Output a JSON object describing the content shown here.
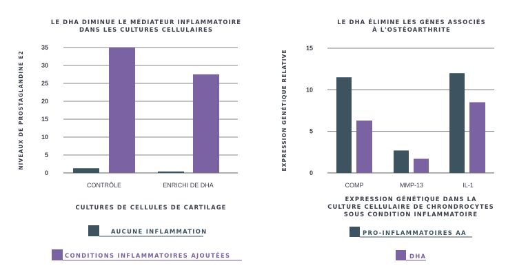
{
  "colors": {
    "series_a": "#3e5360",
    "series_b": "#7b62a3",
    "text": "#3b3f4a",
    "grid": "#5a5e66"
  },
  "chart_data": [
    {
      "type": "bar",
      "title_lines": [
        "LE DHA DIMINUE LE MÉDIATEUR INFLAMMATOIRE",
        "DANS LES CULTURES CELLULAIRES"
      ],
      "ylabel": "NIVEAUX DE PROSTAGLANDINE E2",
      "xlabel": "CULTURES DE CELLULES DE CARTILAGE",
      "categories": [
        "CONTRÔLE",
        "ENRICHI DE DHA"
      ],
      "ylim": [
        0,
        35
      ],
      "yticks": [
        0,
        5,
        10,
        15,
        20,
        25,
        30,
        35
      ],
      "grid": true,
      "series": [
        {
          "name": "AUCUNE INFLAMMATION",
          "values": [
            1.3,
            0.4
          ]
        },
        {
          "name": "CONDITIONS INFLAMMATOIRES AJOUTÉES",
          "values": [
            35,
            27.5
          ]
        }
      ]
    },
    {
      "type": "bar",
      "title_lines": [
        "LE DHA ÉLIMINE LES GÈNES ASSOCIÉS",
        "À L'OSTÉOARTHRITE"
      ],
      "ylabel": "EXPRESSION GÉNÉTIQUE RELATIVE",
      "xlabel_lines": [
        "EXPRESSION GÉNÉTIQUE DANS LA",
        "CULTURE CELLULAIRE DE CHRONDROCYTES",
        "SOUS CONDITION INFLAMMATOIRE"
      ],
      "categories": [
        "COMP",
        "MMP-13",
        "IL-1"
      ],
      "ylim": [
        0,
        15
      ],
      "yticks": [
        0,
        5,
        10,
        15
      ],
      "grid": true,
      "series": [
        {
          "name": "PRO-INFLAMMATOIRES AA",
          "values": [
            11.5,
            2.7,
            12
          ]
        },
        {
          "name": "DHA",
          "values": [
            6.3,
            1.7,
            8.5
          ]
        }
      ]
    }
  ]
}
